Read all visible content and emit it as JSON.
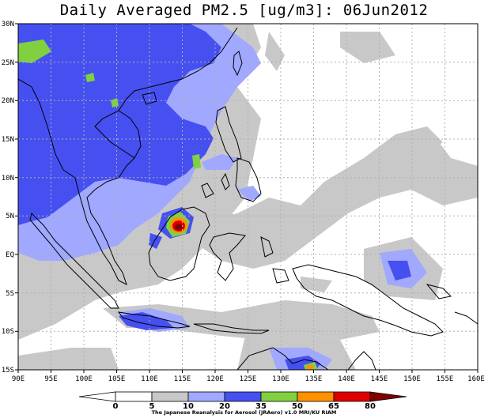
{
  "title": "Daily Averaged PM2.5 [ug/m3]: 06Jun2012",
  "credit": "The Japanese Reanalysis for Aerosol (JRAero) v1.0 MRI/KU RIAM",
  "map": {
    "lon_range": [
      90,
      160
    ],
    "lat_range": [
      -15,
      30
    ],
    "x_ticks": [
      "90E",
      "95E",
      "100E",
      "105E",
      "110E",
      "115E",
      "120E",
      "125E",
      "130E",
      "135E",
      "140E",
      "145E",
      "150E",
      "155E",
      "160E"
    ],
    "y_ticks": [
      "30N",
      "25N",
      "20N",
      "15N",
      "10N",
      "5N",
      "EQ",
      "5S",
      "10S",
      "15S"
    ]
  },
  "colorbar": {
    "levels": [
      "0",
      "5",
      "10",
      "20",
      "35",
      "50",
      "65",
      "80"
    ],
    "colors": [
      "#ffffff",
      "#ffffff",
      "#c8c8c8",
      "#a0a8ff",
      "#4650f0",
      "#80d040",
      "#ff9000",
      "#e00000",
      "#800000"
    ]
  },
  "colors": {
    "gray": "#c8c8c8",
    "lightblue": "#a0a8ff",
    "blue": "#4650f0",
    "green": "#80d040",
    "orange": "#ff9000",
    "red": "#e00000",
    "darkred": "#800000"
  }
}
